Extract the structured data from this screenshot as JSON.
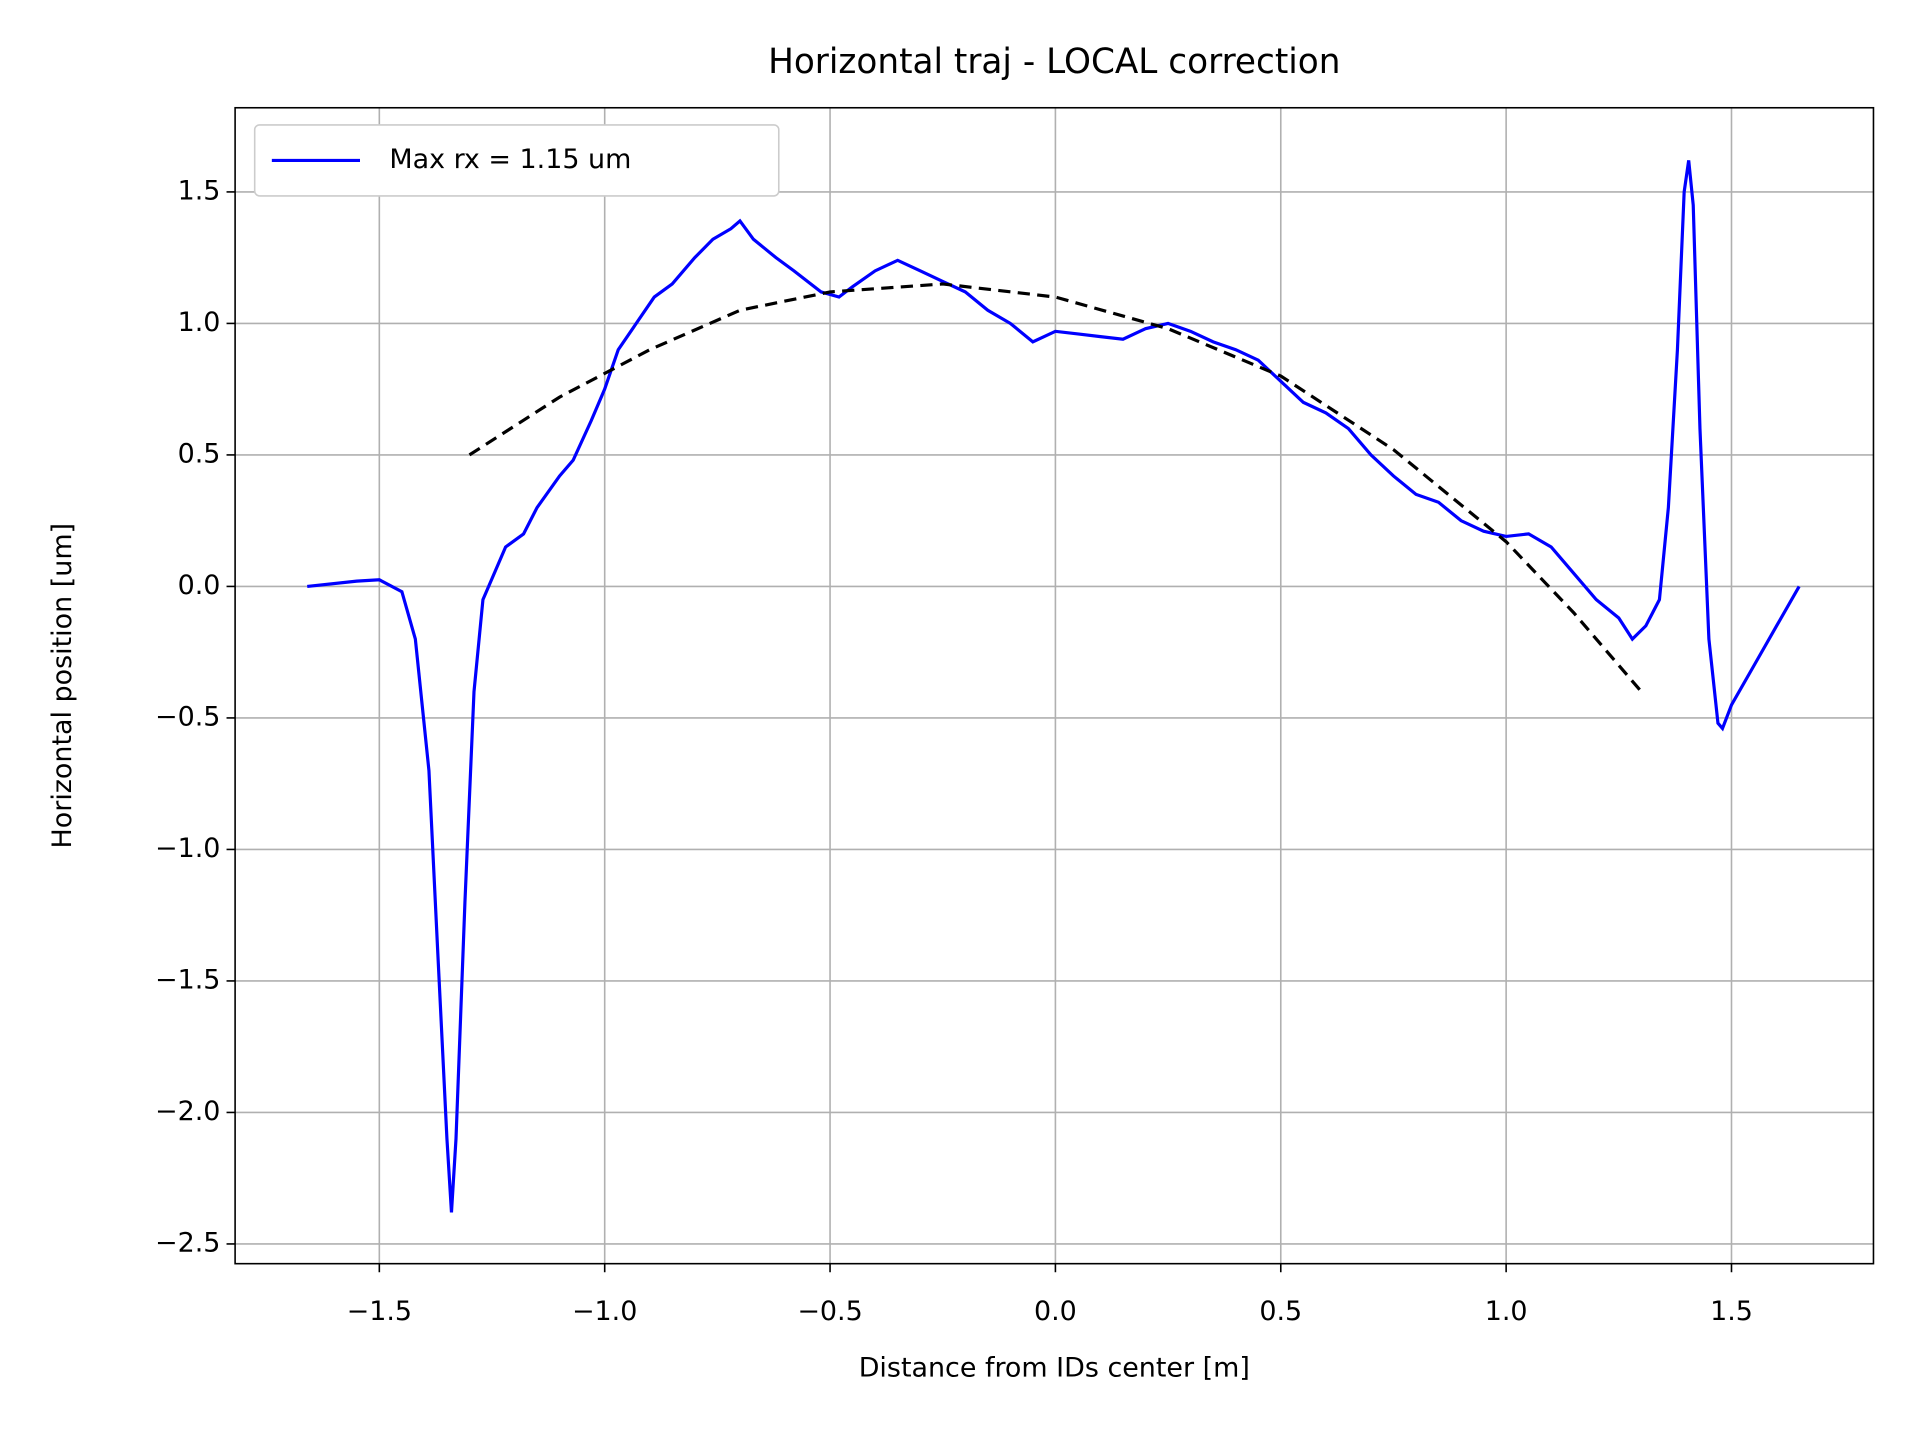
{
  "chart_data": {
    "type": "line",
    "title": "Horizontal traj - LOCAL correction",
    "xlabel": "Distance from IDs center [m]",
    "ylabel": "Horizontal position [um]",
    "xlim": [
      -1.82,
      1.815
    ],
    "ylim": [
      -2.575,
      1.82
    ],
    "xticks": [
      {
        "value": -1.5,
        "label": "−1.5"
      },
      {
        "value": -1.0,
        "label": "−1.0"
      },
      {
        "value": -0.5,
        "label": "−0.5"
      },
      {
        "value": 0,
        "label": "0.0"
      },
      {
        "value": 0.5,
        "label": "0.5"
      },
      {
        "value": 1.0,
        "label": "1.0"
      },
      {
        "value": 1.5,
        "label": "1.5"
      }
    ],
    "yticks": [
      {
        "value": -2.5,
        "label": "−2.5"
      },
      {
        "value": -2.0,
        "label": "−2.0"
      },
      {
        "value": -1.5,
        "label": "−1.5"
      },
      {
        "value": -1.0,
        "label": "−1.0"
      },
      {
        "value": -0.5,
        "label": "−0.5"
      },
      {
        "value": 0,
        "label": "0.0"
      },
      {
        "value": 0.5,
        "label": "0.5"
      },
      {
        "value": 1.0,
        "label": "1.0"
      },
      {
        "value": 1.5,
        "label": "1.5"
      }
    ],
    "grid": true,
    "legend": "upper left",
    "series": [
      {
        "name": "Max rx = 1.15 um",
        "color": "#0000ff",
        "x": [
          -1.66,
          -1.55,
          -1.5,
          -1.45,
          -1.42,
          -1.39,
          -1.37,
          -1.35,
          -1.34,
          -1.33,
          -1.31,
          -1.29,
          -1.27,
          -1.25,
          -1.22,
          -1.18,
          -1.15,
          -1.1,
          -1.07,
          -1.03,
          -1.0,
          -0.97,
          -0.93,
          -0.89,
          -0.85,
          -0.8,
          -0.76,
          -0.72,
          -0.7,
          -0.67,
          -0.62,
          -0.58,
          -0.52,
          -0.48,
          -0.45,
          -0.4,
          -0.35,
          -0.3,
          -0.25,
          -0.2,
          -0.15,
          -0.1,
          -0.05,
          0,
          0.05,
          0.1,
          0.15,
          0.2,
          0.25,
          0.3,
          0.35,
          0.4,
          0.45,
          0.5,
          0.55,
          0.6,
          0.65,
          0.7,
          0.75,
          0.8,
          0.85,
          0.9,
          0.95,
          1.0,
          1.05,
          1.1,
          1.15,
          1.2,
          1.25,
          1.28,
          1.31,
          1.34,
          1.36,
          1.38,
          1.395,
          1.405,
          1.415,
          1.43,
          1.45,
          1.47,
          1.48,
          1.5,
          1.55,
          1.6,
          1.65
        ],
        "values": [
          0,
          0.02,
          0.025,
          -0.02,
          -0.2,
          -0.7,
          -1.4,
          -2.1,
          -2.38,
          -2.1,
          -1.2,
          -0.4,
          -0.05,
          0.03,
          0.15,
          0.2,
          0.3,
          0.42,
          0.48,
          0.63,
          0.75,
          0.9,
          1.0,
          1.1,
          1.15,
          1.25,
          1.32,
          1.36,
          1.39,
          1.32,
          1.25,
          1.2,
          1.12,
          1.1,
          1.14,
          1.2,
          1.24,
          1.2,
          1.16,
          1.12,
          1.05,
          1.0,
          0.93,
          0.97,
          0.96,
          0.95,
          0.94,
          0.98,
          1.0,
          0.97,
          0.93,
          0.9,
          0.86,
          0.78,
          0.7,
          0.66,
          0.6,
          0.5,
          0.42,
          0.35,
          0.32,
          0.25,
          0.21,
          0.19,
          0.2,
          0.15,
          0.05,
          -0.05,
          -0.12,
          -0.2,
          -0.15,
          -0.05,
          0.3,
          0.9,
          1.5,
          1.62,
          1.45,
          0.6,
          -0.2,
          -0.52,
          -0.54,
          -0.45,
          -0.3,
          -0.15,
          0.0
        ]
      },
      {
        "color": "#000000",
        "dash": true,
        "x": [
          -1.3,
          -1.1,
          -0.9,
          -0.7,
          -0.5,
          -0.25,
          0,
          0.25,
          0.5,
          0.75,
          1.0,
          1.15,
          1.3
        ],
        "values": [
          0.5,
          0.72,
          0.9,
          1.05,
          1.12,
          1.15,
          1.1,
          0.98,
          0.8,
          0.52,
          0.17,
          -0.1,
          -0.4
        ]
      }
    ]
  }
}
